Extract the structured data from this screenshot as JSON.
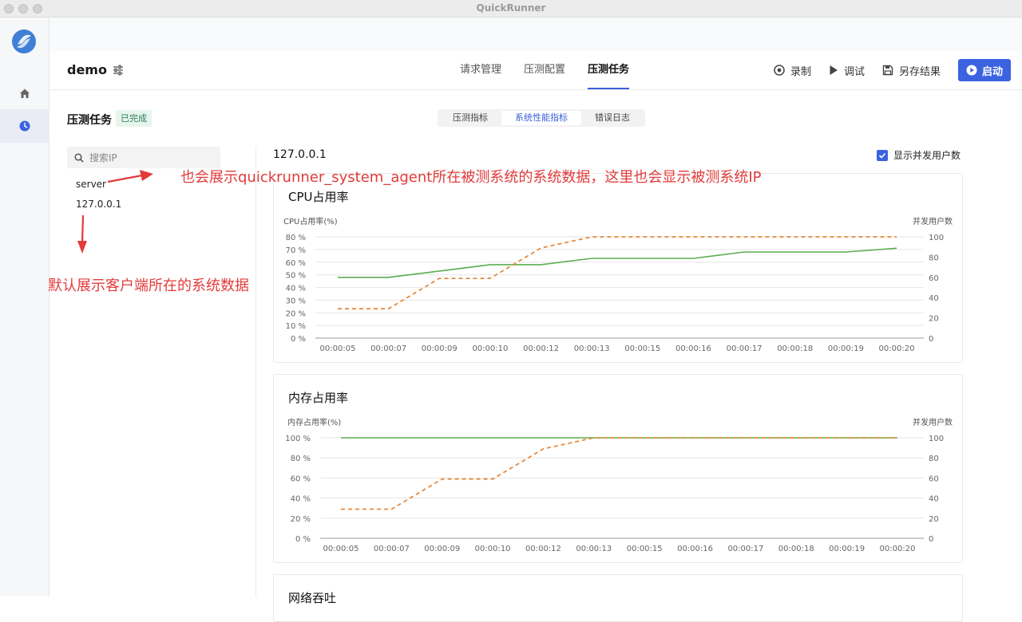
{
  "window": {
    "title": "QuickRunner"
  },
  "nav": {
    "items": [
      "home-icon",
      "clock-icon"
    ]
  },
  "header": {
    "project": "demo",
    "tabs": [
      {
        "label": "请求管理",
        "active": false
      },
      {
        "label": "压测配置",
        "active": false
      },
      {
        "label": "压测任务",
        "active": true
      }
    ],
    "actions": {
      "record": "录制",
      "debug": "调试",
      "save": "另存结果",
      "start": "启动"
    }
  },
  "task": {
    "title": "压测任务",
    "status": "已完成",
    "subtabs": [
      {
        "label": "压测指标",
        "active": false
      },
      {
        "label": "系统性能指标",
        "active": true
      },
      {
        "label": "错误日志",
        "active": false
      }
    ]
  },
  "ip_list": {
    "search_placeholder": "搜索IP",
    "items": [
      "server",
      "127.0.0.1"
    ]
  },
  "panel": {
    "selected_ip": "127.0.0.1",
    "show_concurrent_label": "显示并发用户数",
    "show_concurrent": true,
    "next_card_title": "网络吞吐"
  },
  "annotations": {
    "note_top": "也会展示quickrunner_system_agent所在被测系统的系统数据，这里也会显示被测系统IP",
    "note_left": "默认展示客户端所在的系统数据",
    "color": "#e23b3b"
  },
  "colors": {
    "accent": "#3b63e0",
    "series_main": "#5aae4f",
    "series_users": "#e8893a"
  },
  "chart_data": [
    {
      "type": "line",
      "title": "CPU占用率",
      "ylabel": "CPU占用率(%)",
      "y2label": "并发用户数",
      "x": [
        "00:00:05",
        "00:00:07",
        "00:00:09",
        "00:00:10",
        "00:00:12",
        "00:00:13",
        "00:00:15",
        "00:00:16",
        "00:00:17",
        "00:00:18",
        "00:00:19",
        "00:00:20"
      ],
      "yticks": [
        "0 %",
        "10 %",
        "20 %",
        "30 %",
        "40 %",
        "50 %",
        "60 %",
        "70 %",
        "80 %"
      ],
      "y2ticks": [
        "0",
        "20",
        "40",
        "60",
        "80",
        "100"
      ],
      "ylim": [
        0,
        80
      ],
      "y2lim": [
        0,
        100
      ],
      "series": [
        {
          "axis": "left",
          "style": "solid",
          "values": [
            48,
            48,
            53,
            58,
            58,
            63,
            63,
            63,
            68,
            68,
            68,
            71
          ]
        },
        {
          "axis": "right",
          "style": "dashed",
          "values": [
            29,
            29,
            59,
            59,
            89,
            100,
            100,
            100,
            100,
            100,
            100,
            100
          ]
        }
      ]
    },
    {
      "type": "line",
      "title": "内存占用率",
      "ylabel": "内存占用率(%)",
      "y2label": "并发用户数",
      "x": [
        "00:00:05",
        "00:00:07",
        "00:00:09",
        "00:00:10",
        "00:00:12",
        "00:00:13",
        "00:00:15",
        "00:00:16",
        "00:00:17",
        "00:00:18",
        "00:00:19",
        "00:00:20"
      ],
      "yticks": [
        "0 %",
        "20 %",
        "40 %",
        "60 %",
        "80 %",
        "100 %"
      ],
      "y2ticks": [
        "0",
        "20",
        "40",
        "60",
        "80",
        "100"
      ],
      "ylim": [
        0,
        100
      ],
      "y2lim": [
        0,
        100
      ],
      "series": [
        {
          "axis": "left",
          "style": "solid",
          "values": [
            100,
            100,
            100,
            100,
            100,
            100,
            100,
            100,
            100,
            100,
            100,
            100
          ]
        },
        {
          "axis": "right",
          "style": "dashed",
          "values": [
            29,
            29,
            59,
            59,
            89,
            100,
            100,
            100,
            100,
            100,
            100,
            100
          ]
        }
      ]
    }
  ]
}
